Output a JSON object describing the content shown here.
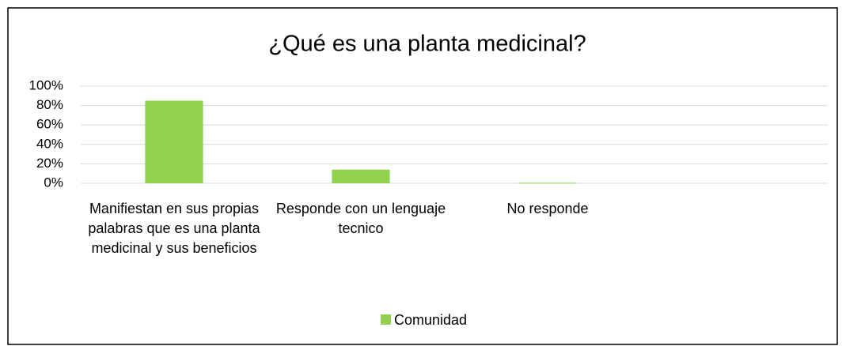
{
  "chart_data": {
    "type": "bar",
    "title": "¿Qué es una planta medicinal?",
    "categories": [
      "Manifiestan en sus propias palabras que es una planta medicinal y sus beneficios",
      "Responde con un lenguaje tecnico",
      "No responde",
      null
    ],
    "series": [
      {
        "name": "Comunidad",
        "color": "#92d050",
        "values": [
          85,
          14,
          0.5,
          null
        ]
      }
    ],
    "ylim": [
      0,
      100
    ],
    "yticks": [
      {
        "value": 0,
        "label": "0%"
      },
      {
        "value": 20,
        "label": "20%"
      },
      {
        "value": 40,
        "label": "40%"
      },
      {
        "value": 60,
        "label": "60%"
      },
      {
        "value": 80,
        "label": "80%"
      },
      {
        "value": 100,
        "label": "100%"
      }
    ],
    "grid": true,
    "legend": "bottom"
  }
}
